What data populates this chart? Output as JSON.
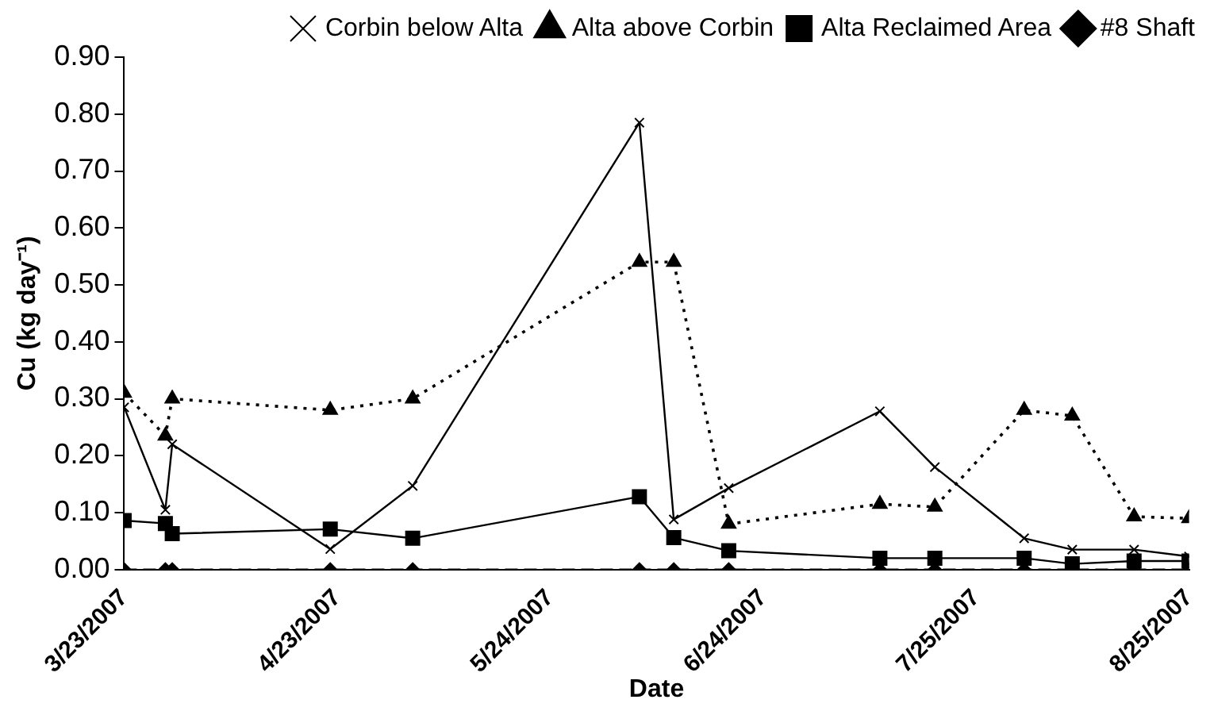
{
  "chart_data": {
    "type": "line",
    "xlabel": "Date",
    "ylabel": "Cu (kg day⁻¹)",
    "xlim": [
      "2007-03-23",
      "2007-08-25"
    ],
    "xticks": [
      {
        "value": "2007-03-23",
        "label": "3/23/2007"
      },
      {
        "value": "2007-04-23",
        "label": "4/23/2007"
      },
      {
        "value": "2007-05-24",
        "label": "5/24/2007"
      },
      {
        "value": "2007-06-24",
        "label": "6/24/2007"
      },
      {
        "value": "2007-07-25",
        "label": "7/25/2007"
      },
      {
        "value": "2007-08-25",
        "label": "8/25/2007"
      }
    ],
    "ylim": [
      0,
      0.9
    ],
    "yticks": [
      {
        "value": 0,
        "label": "0.00"
      },
      {
        "value": 0.1,
        "label": "0.10"
      },
      {
        "value": 0.2,
        "label": "0.20"
      },
      {
        "value": 0.3,
        "label": "0.30"
      },
      {
        "value": 0.4,
        "label": "0.40"
      },
      {
        "value": 0.5,
        "label": "0.50"
      },
      {
        "value": 0.6,
        "label": "0.60"
      },
      {
        "value": 0.7,
        "label": "0.70"
      },
      {
        "value": 0.8,
        "label": "0.80"
      },
      {
        "value": 0.9,
        "label": "0.90"
      }
    ],
    "x": [
      "2007-03-23",
      "2007-03-29",
      "2007-03-30",
      "2007-04-22",
      "2007-05-04",
      "2007-06-06",
      "2007-06-11",
      "2007-06-19",
      "2007-07-11",
      "2007-07-19",
      "2007-08-01",
      "2007-08-08",
      "2007-08-17",
      "2007-08-25"
    ],
    "grid": false,
    "legend": "top right",
    "series": [
      {
        "name": "#8 Shaft",
        "color": "#000000",
        "marker": "diamond",
        "line_style": "dashed",
        "values": [
          0,
          0,
          0,
          0,
          0,
          0,
          0,
          0,
          0,
          0,
          0,
          0,
          0,
          0
        ]
      },
      {
        "name": "Alta Reclaimed Area",
        "color": "#000000",
        "marker": "square",
        "line_style": "solid",
        "values": [
          0.086,
          0.081,
          0.063,
          0.071,
          0.055,
          0.128,
          0.056,
          0.033,
          0.02,
          0.02,
          0.02,
          0.01,
          0.015,
          0.015
        ]
      },
      {
        "name": "Alta above Corbin",
        "color": "#000000",
        "marker": "triangle",
        "line_style": "dotted",
        "values": [
          0.31,
          0.235,
          0.3,
          0.28,
          0.3,
          0.54,
          0.54,
          0.08,
          0.115,
          0.11,
          0.28,
          0.27,
          0.093,
          0.09
        ]
      },
      {
        "name": "Corbin below Alta",
        "color": "#000000",
        "marker": "cross",
        "line_style": "solid",
        "values": [
          0.285,
          0.105,
          0.22,
          0.036,
          0.147,
          0.785,
          0.088,
          0.143,
          0.278,
          0.18,
          0.055,
          0.035,
          0.035,
          0.023
        ]
      }
    ]
  }
}
